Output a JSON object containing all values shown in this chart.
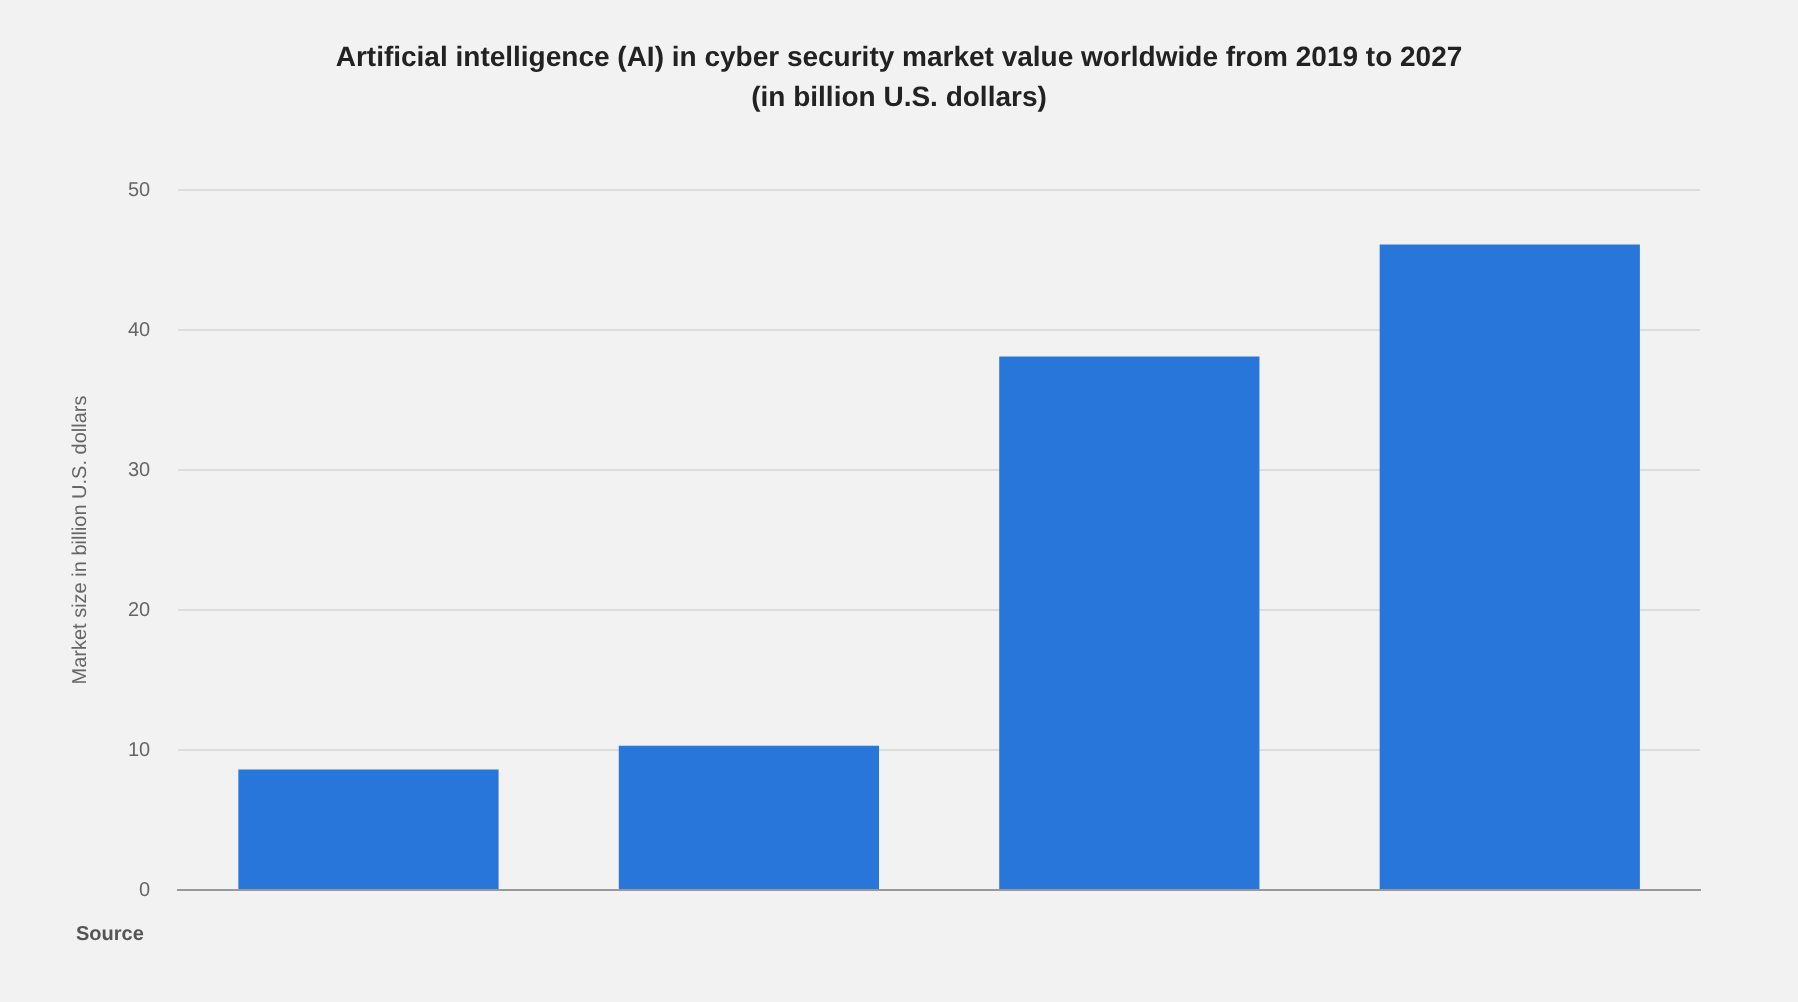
{
  "chart_data": {
    "type": "bar",
    "title": "Artificial intelligence (AI) in cyber security market value worldwide from 2019 to 2027",
    "subtitle": "(in billion U.S. dollars)",
    "ylabel": "Market size in billion U.S. dollars",
    "categories": [
      null,
      null,
      null,
      null
    ],
    "values": [
      8.6,
      10.3,
      38.1,
      46.1
    ],
    "color": "#2876d9",
    "ylim": [
      0,
      50
    ],
    "yticks": [
      0,
      10,
      20,
      30,
      40,
      50
    ],
    "grid": "y",
    "annotations": [
      "Source"
    ]
  }
}
